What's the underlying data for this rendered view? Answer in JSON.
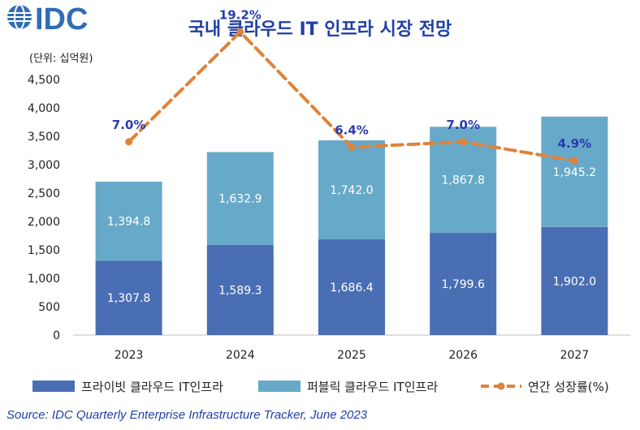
{
  "logo": {
    "text": "IDC"
  },
  "chart_data": {
    "type": "bar",
    "stacked": true,
    "title": "국내 클라우드 IT 인프라 시장 전망",
    "unit_label": "(단위: 십억원)",
    "categories": [
      "2023",
      "2024",
      "2025",
      "2026",
      "2027"
    ],
    "category_labels": [
      "2023",
      "2024",
      "2025",
      "2026",
      "2027"
    ],
    "ylim": [
      0,
      4500
    ],
    "yticks": [
      0,
      500,
      1000,
      1500,
      2000,
      2500,
      3000,
      3500,
      4000,
      4500
    ],
    "ytick_labels": [
      "0",
      "500",
      "1,000",
      "1,500",
      "2,000",
      "2,500",
      "3,000",
      "3,500",
      "4,000",
      "4,500"
    ],
    "series": [
      {
        "name": "프라이빗 클라우드 IT인프라",
        "color": "#4a6eb4",
        "values": [
          1307.8,
          1589.3,
          1686.4,
          1799.6,
          1902.0
        ],
        "labels": [
          "1,307.8",
          "1,589.3",
          "1,686.4",
          "1,799.6",
          "1,902.0"
        ]
      },
      {
        "name": "퍼블릭 클라우드 IT인프라",
        "color": "#67a9c8",
        "values": [
          1394.8,
          1632.9,
          1742.0,
          1867.8,
          1945.2
        ],
        "labels": [
          "1,394.8",
          "1,632.9",
          "1,742.0",
          "1,867.8",
          "1,945.2"
        ]
      }
    ],
    "growth": {
      "name": "연간 성장률(%)",
      "color": "#e0823a",
      "label_color": "#2a3bb0",
      "values": [
        7.0,
        19.2,
        6.4,
        7.0,
        4.9
      ],
      "labels": [
        "7.0%",
        "19.2%",
        "6.4%",
        "7.0%",
        "4.9%"
      ]
    },
    "legend_position": "bottom",
    "grid": false
  },
  "source": "Source: IDC Quarterly Enterprise Infrastructure Tracker, June 2023"
}
